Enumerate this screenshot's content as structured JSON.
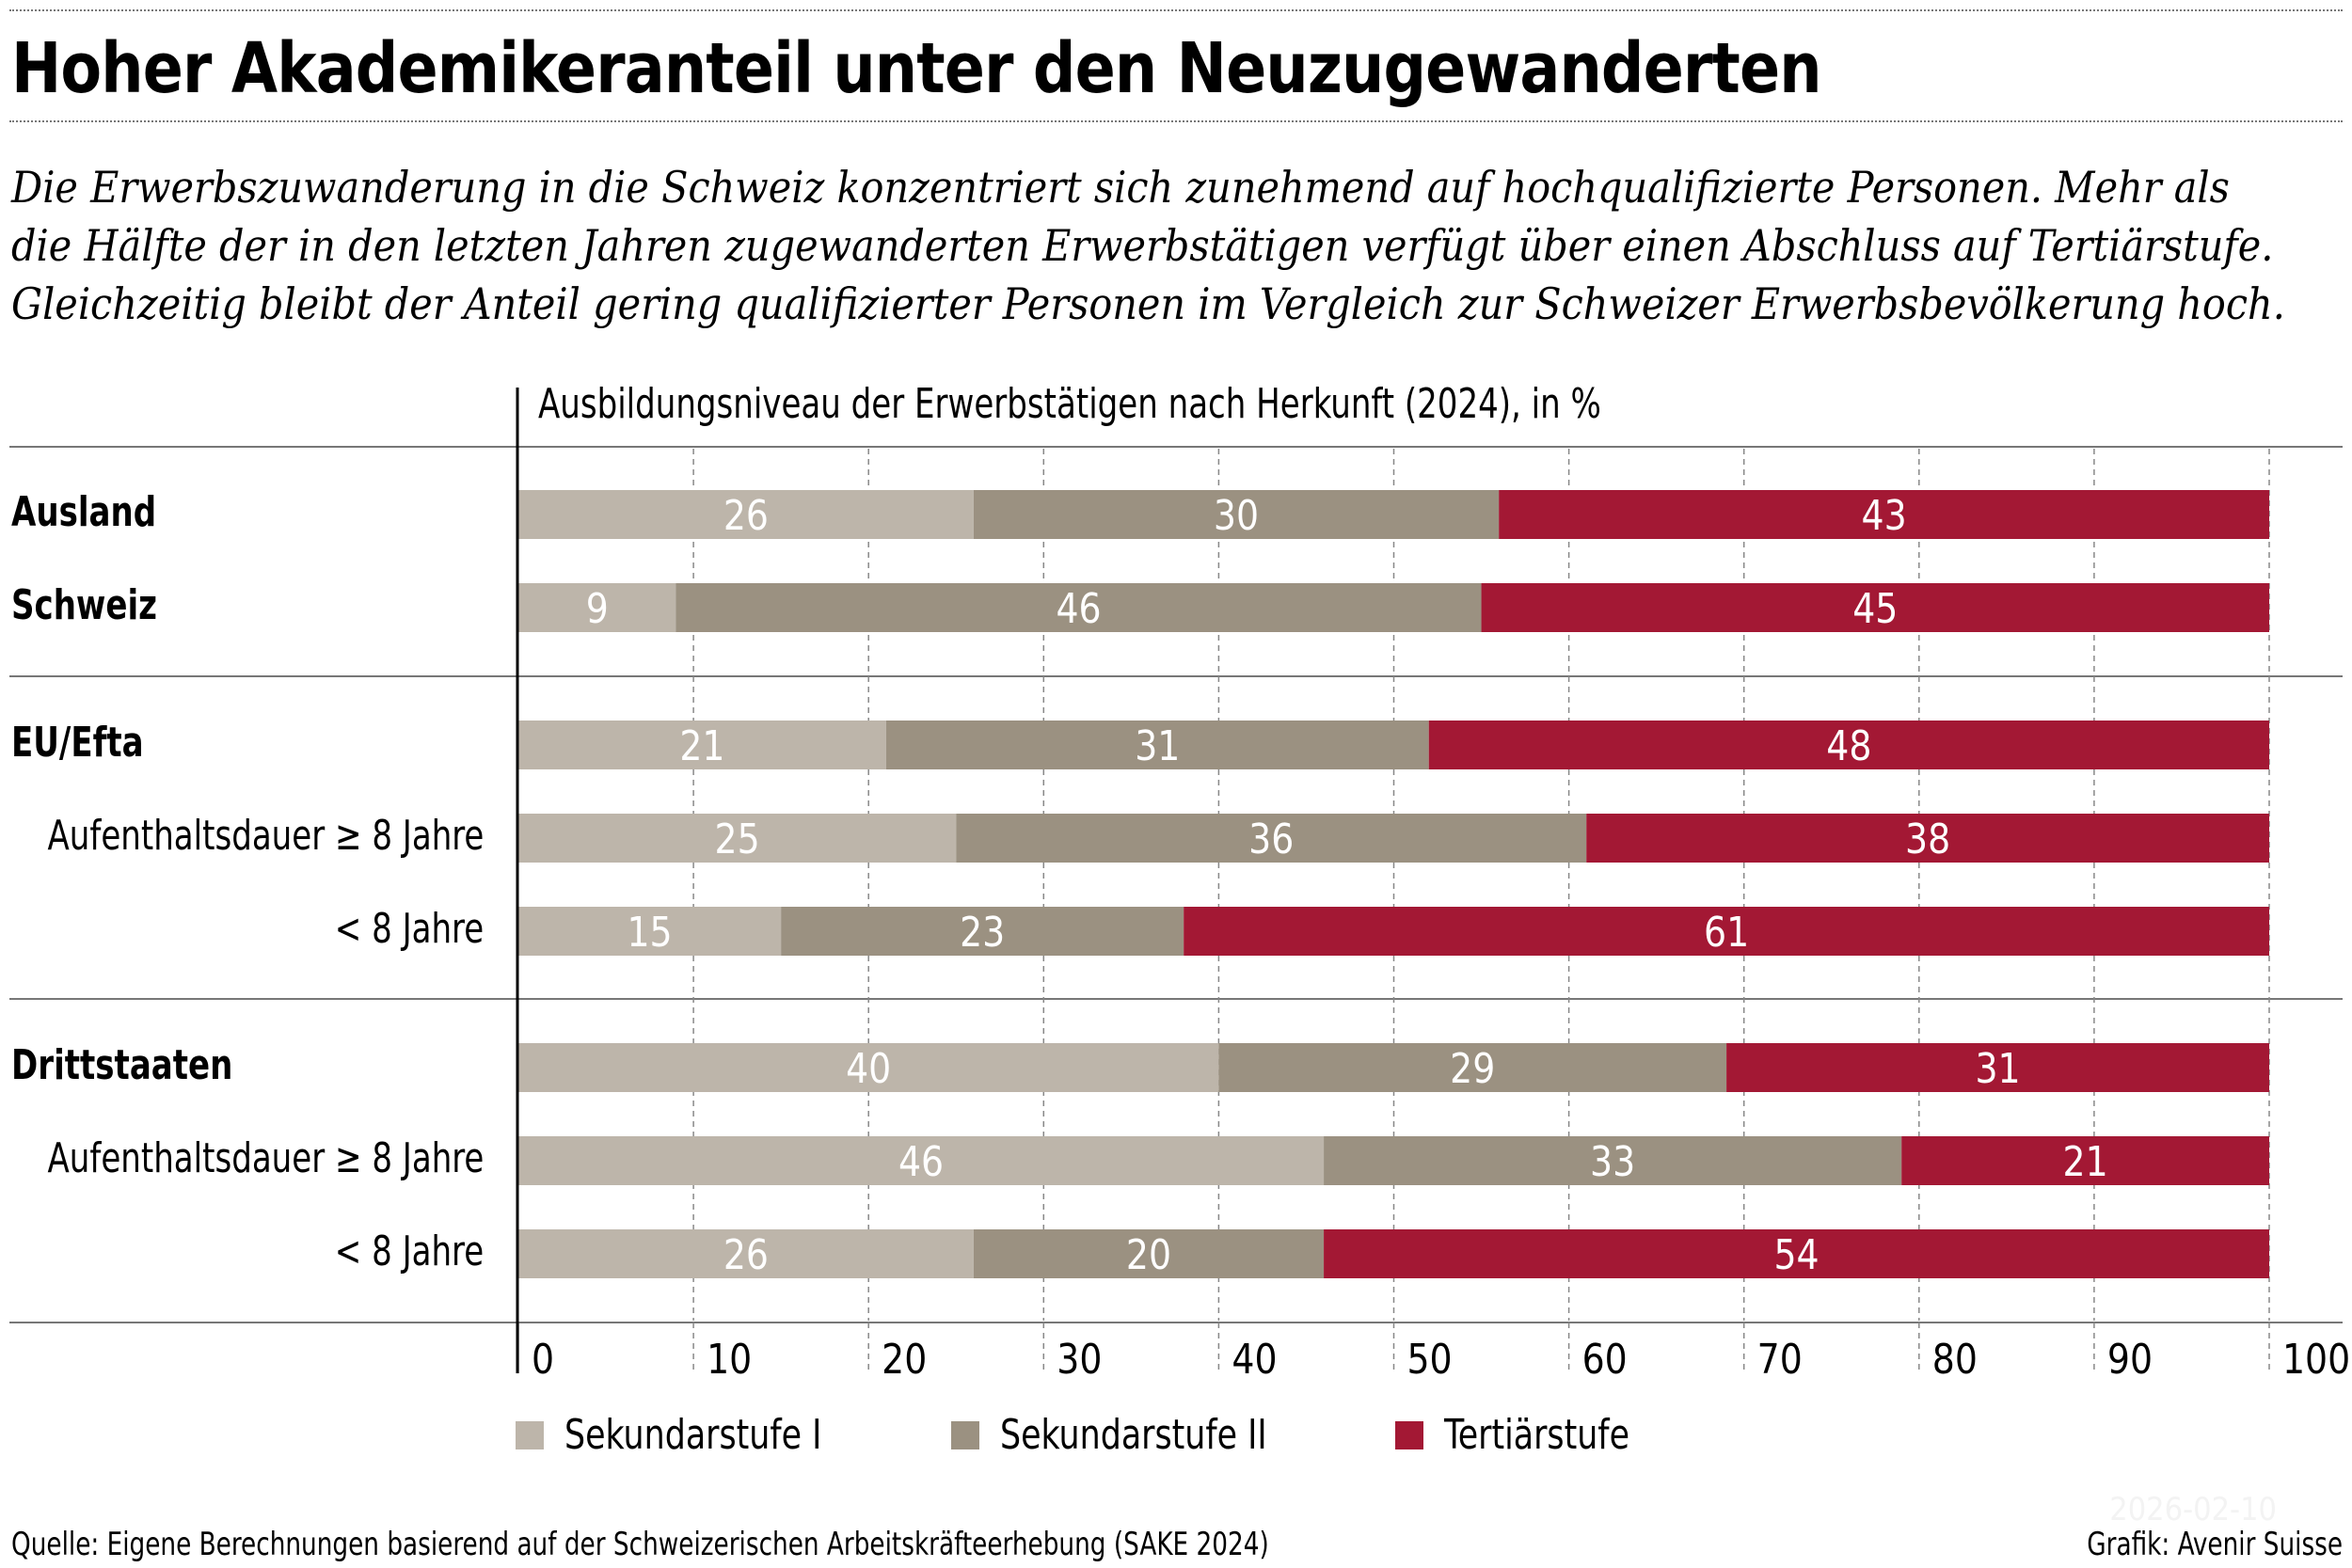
{
  "title": "Hoher Akademikeranteil unter den Neuzugewanderten",
  "subtitle": "Die Erwerbszuwanderung in die Schweiz konzentriert sich zunehmend auf hochqualifizierte Personen. Mehr als die Hälfte der in den letzten Jahren zugewanderten Erwerbstätigen verfügt über einen Abschluss auf Tertiärstufe. Gleichzeitig bleibt der Anteil gering qualifizierter Personen im Vergleich zur Schweizer Erwerbsbevölkerung hoch.",
  "source": "Quelle: Eigene Berechnungen basierend auf der Schweizerischen Arbeitskräfteerhebung (SAKE 2024)",
  "credit": "Grafik: Avenir Suisse",
  "stamp": "2026-02-10",
  "chart_data": {
    "type": "bar",
    "orientation": "horizontal",
    "stacked": true,
    "title": "Ausbildungsniveau der Erwerbstätigen nach Herkunft (2024), in %",
    "categories": [
      "Ausland",
      "Schweiz",
      "EU/Efta",
      "Aufenthaltsdauer ≥ 8 Jahre",
      "< 8 Jahre",
      "Drittstaaten",
      "Aufenthaltsdauer ≥ 8 Jahre",
      "< 8 Jahre"
    ],
    "category_bold": [
      true,
      true,
      true,
      false,
      false,
      true,
      false,
      false
    ],
    "groups": [
      [
        "Ausland",
        "Schweiz"
      ],
      [
        "EU/Efta",
        "Aufenthaltsdauer ≥ 8 Jahre",
        "< 8 Jahre"
      ],
      [
        "Drittstaaten",
        "Aufenthaltsdauer ≥ 8 Jahre",
        "< 8 Jahre"
      ]
    ],
    "series": [
      {
        "name": "Sekundarstufe I",
        "color": "#bdb5aa",
        "values": [
          26,
          9,
          21,
          25,
          15,
          40,
          46,
          26
        ]
      },
      {
        "name": "Sekundarstufe II",
        "color": "#9b9181",
        "values": [
          30,
          46,
          31,
          36,
          23,
          29,
          33,
          20
        ]
      },
      {
        "name": "Tertiärstufe",
        "color": "#a31834",
        "values": [
          43,
          45,
          48,
          38,
          61,
          31,
          21,
          54
        ]
      }
    ],
    "xlim": [
      0,
      100
    ],
    "xticks": [
      "0",
      "10",
      "20",
      "30",
      "40",
      "50",
      "60",
      "70",
      "80",
      "90",
      "100"
    ],
    "grid": true,
    "legend": "bottom"
  }
}
